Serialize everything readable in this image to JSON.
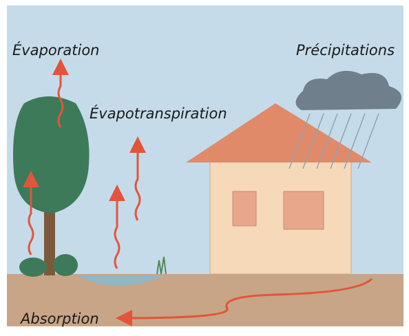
{
  "labels": {
    "evaporation": "Évaporation",
    "evapotranspiration": "Évapotranspiration",
    "precipitation": "Précipitations",
    "absorption": "Absorption"
  }
}
